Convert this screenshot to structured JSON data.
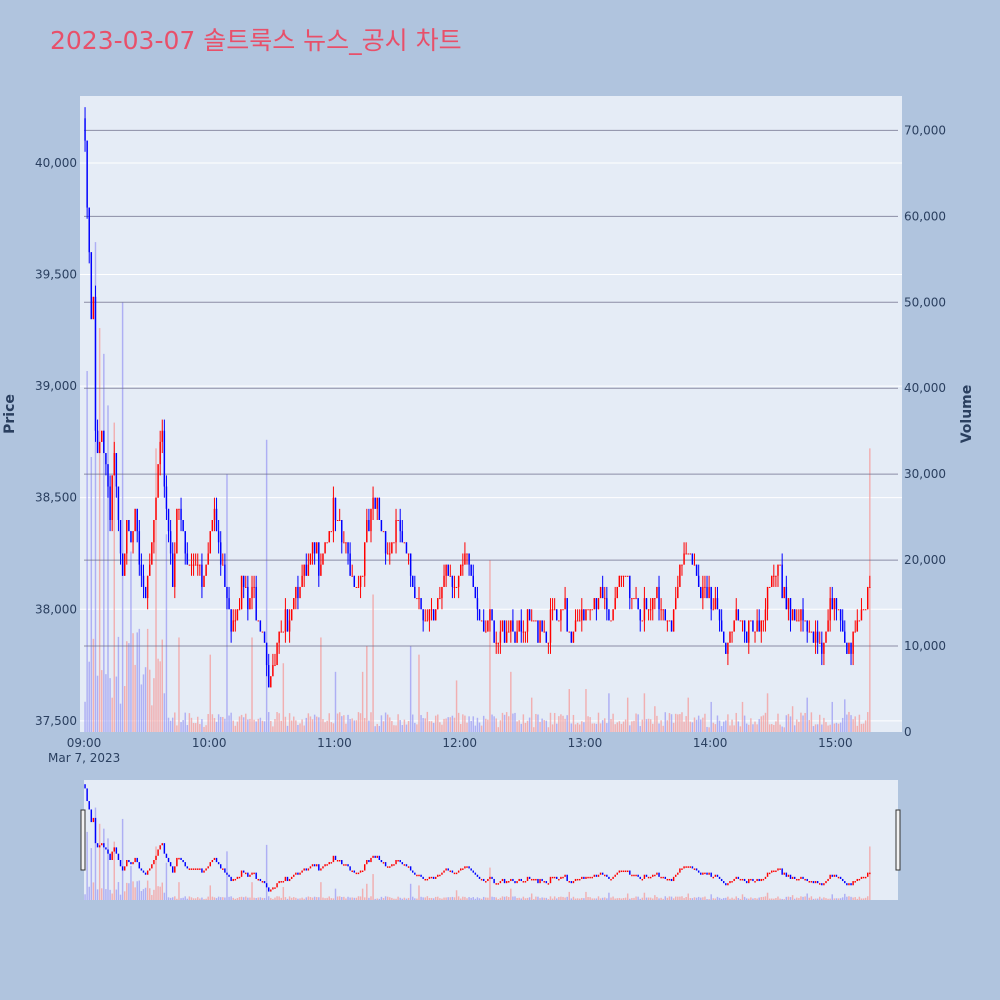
{
  "title": "2023-03-07 솔트룩스 뉴스_공시 차트",
  "colors": {
    "page_bg": "#b0c4de",
    "plot_bg": "#e5ecf6",
    "title": "#e8506a",
    "up": "#ff0000",
    "down": "#0000ff",
    "volume_up": "#f4a0a0",
    "volume_down": "#a0a0f4",
    "price_grid": "#ffffff",
    "volume_grid": "#6e6e8a",
    "tick_text": "#2a3f5f"
  },
  "chart_data": {
    "type": "candlestick",
    "title": "2023-03-07 솔트룩스 뉴스_공시 차트",
    "x_start_label": "09:00",
    "x_date_label": "Mar 7, 2023",
    "x_ticks": [
      "09:00",
      "10:00",
      "11:00",
      "12:00",
      "13:00",
      "14:00",
      "15:00"
    ],
    "x_range_minutes": [
      0,
      390
    ],
    "y_left": {
      "title": "Price",
      "range": [
        37450,
        40300
      ],
      "ticks": [
        37500,
        38000,
        38500,
        39000,
        39500,
        40000
      ],
      "tick_labels": [
        "37,500",
        "38,000",
        "38,500",
        "39,000",
        "39,500",
        "40,000"
      ]
    },
    "y_right": {
      "title": "Volume",
      "range": [
        0,
        74000
      ],
      "ticks": [
        0,
        10000,
        20000,
        30000,
        40000,
        50000,
        60000,
        70000
      ],
      "tick_labels": [
        "0",
        "10,000",
        "20,000",
        "30,000",
        "40,000",
        "50,000",
        "60,000",
        "70,000"
      ]
    },
    "anchors": [
      [
        0,
        40150
      ],
      [
        1,
        39750
      ],
      [
        2,
        39650
      ],
      [
        3,
        39300
      ],
      [
        4,
        39400
      ],
      [
        5,
        38800
      ],
      [
        6,
        38700
      ],
      [
        8,
        38900
      ],
      [
        10,
        38700
      ],
      [
        12,
        38500
      ],
      [
        14,
        38750
      ],
      [
        16,
        38350
      ],
      [
        18,
        38150
      ],
      [
        20,
        38400
      ],
      [
        22,
        38300
      ],
      [
        24,
        38550
      ],
      [
        26,
        38300
      ],
      [
        28,
        38200
      ],
      [
        30,
        38100
      ],
      [
        32,
        38300
      ],
      [
        35,
        38650
      ],
      [
        37,
        38750
      ],
      [
        40,
        38400
      ],
      [
        42,
        38200
      ],
      [
        44,
        38500
      ],
      [
        47,
        38350
      ],
      [
        50,
        38200
      ],
      [
        53,
        38300
      ],
      [
        56,
        38200
      ],
      [
        60,
        38400
      ],
      [
        62,
        38450
      ],
      [
        65,
        38250
      ],
      [
        68,
        38150
      ],
      [
        70,
        38000
      ],
      [
        73,
        38100
      ],
      [
        76,
        38150
      ],
      [
        78,
        38050
      ],
      [
        81,
        38100
      ],
      [
        84,
        38000
      ],
      [
        86,
        37950
      ],
      [
        88,
        37750
      ],
      [
        90,
        37700
      ],
      [
        92,
        37850
      ],
      [
        95,
        37900
      ],
      [
        98,
        38050
      ],
      [
        100,
        38150
      ],
      [
        103,
        38200
      ],
      [
        105,
        38150
      ],
      [
        108,
        38250
      ],
      [
        110,
        38250
      ],
      [
        113,
        38300
      ],
      [
        116,
        38400
      ],
      [
        119,
        38450
      ],
      [
        122,
        38350
      ],
      [
        125,
        38300
      ],
      [
        128,
        38200
      ],
      [
        131,
        38150
      ],
      [
        134,
        38300
      ],
      [
        137,
        38450
      ],
      [
        140,
        38500
      ],
      [
        143,
        38400
      ],
      [
        146,
        38300
      ],
      [
        149,
        38400
      ],
      [
        152,
        38350
      ],
      [
        155,
        38200
      ],
      [
        158,
        38150
      ],
      [
        161,
        38100
      ],
      [
        164,
        38000
      ],
      [
        167,
        37950
      ],
      [
        170,
        38100
      ],
      [
        173,
        38250
      ],
      [
        176,
        38200
      ],
      [
        179,
        38150
      ],
      [
        182,
        38250
      ],
      [
        185,
        38200
      ],
      [
        188,
        38100
      ],
      [
        191,
        38000
      ],
      [
        194,
        37950
      ],
      [
        197,
        37850
      ],
      [
        200,
        37950
      ],
      [
        203,
        38000
      ],
      [
        206,
        37950
      ],
      [
        209,
        37900
      ],
      [
        212,
        37950
      ],
      [
        215,
        37950
      ],
      [
        218,
        38000
      ],
      [
        221,
        37950
      ],
      [
        224,
        38000
      ],
      [
        227,
        37950
      ],
      [
        230,
        38000
      ],
      [
        233,
        37950
      ],
      [
        236,
        38050
      ],
      [
        239,
        37950
      ],
      [
        242,
        38000
      ],
      [
        245,
        38100
      ],
      [
        248,
        38150
      ],
      [
        251,
        38050
      ],
      [
        254,
        38000
      ],
      [
        257,
        38150
      ],
      [
        260,
        38200
      ],
      [
        263,
        38100
      ],
      [
        266,
        38050
      ],
      [
        269,
        38000
      ],
      [
        272,
        38050
      ],
      [
        275,
        38100
      ],
      [
        278,
        38050
      ],
      [
        281,
        38000
      ],
      [
        284,
        38100
      ],
      [
        287,
        38250
      ],
      [
        290,
        38300
      ],
      [
        293,
        38200
      ],
      [
        296,
        38150
      ],
      [
        299,
        38050
      ],
      [
        302,
        38000
      ],
      [
        305,
        37950
      ],
      [
        308,
        37900
      ],
      [
        311,
        38000
      ],
      [
        314,
        37950
      ],
      [
        317,
        37900
      ],
      [
        320,
        37950
      ],
      [
        323,
        38000
      ],
      [
        326,
        38050
      ],
      [
        329,
        38100
      ],
      [
        332,
        38200
      ],
      [
        335,
        38150
      ],
      [
        338,
        38050
      ],
      [
        341,
        38000
      ],
      [
        344,
        37950
      ],
      [
        347,
        37900
      ],
      [
        350,
        37950
      ],
      [
        353,
        37900
      ],
      [
        356,
        38000
      ],
      [
        359,
        38050
      ],
      [
        362,
        37950
      ],
      [
        365,
        37900
      ],
      [
        368,
        37950
      ],
      [
        370,
        38000
      ],
      [
        372,
        37950
      ],
      [
        374,
        38000
      ],
      [
        376,
        38100
      ]
    ],
    "volume_spikes": [
      [
        1,
        42000
      ],
      [
        3,
        32000
      ],
      [
        5,
        57000
      ],
      [
        7,
        47000
      ],
      [
        9,
        44000
      ],
      [
        11,
        38000
      ],
      [
        14,
        36000
      ],
      [
        18,
        50000
      ],
      [
        22,
        21000
      ],
      [
        26,
        12000
      ],
      [
        30,
        12000
      ],
      [
        34,
        33000
      ],
      [
        39,
        23000
      ],
      [
        45,
        11000
      ],
      [
        60,
        9000
      ],
      [
        68,
        30000
      ],
      [
        80,
        11000
      ],
      [
        87,
        34000
      ],
      [
        95,
        8000
      ],
      [
        113,
        11000
      ],
      [
        120,
        7000
      ],
      [
        133,
        7000
      ],
      [
        135,
        10000
      ],
      [
        138,
        16000
      ],
      [
        156,
        10000
      ],
      [
        160,
        9000
      ],
      [
        178,
        6000
      ],
      [
        194,
        20000
      ],
      [
        204,
        7000
      ],
      [
        214,
        4000
      ],
      [
        232,
        5000
      ],
      [
        240,
        5000
      ],
      [
        251,
        4500
      ],
      [
        260,
        4000
      ],
      [
        268,
        4500
      ],
      [
        273,
        3000
      ],
      [
        289,
        4000
      ],
      [
        300,
        3500
      ],
      [
        315,
        3500
      ],
      [
        327,
        4500
      ],
      [
        339,
        3000
      ],
      [
        346,
        4000
      ],
      [
        358,
        3500
      ],
      [
        364,
        3800
      ],
      [
        376,
        33000
      ]
    ]
  }
}
